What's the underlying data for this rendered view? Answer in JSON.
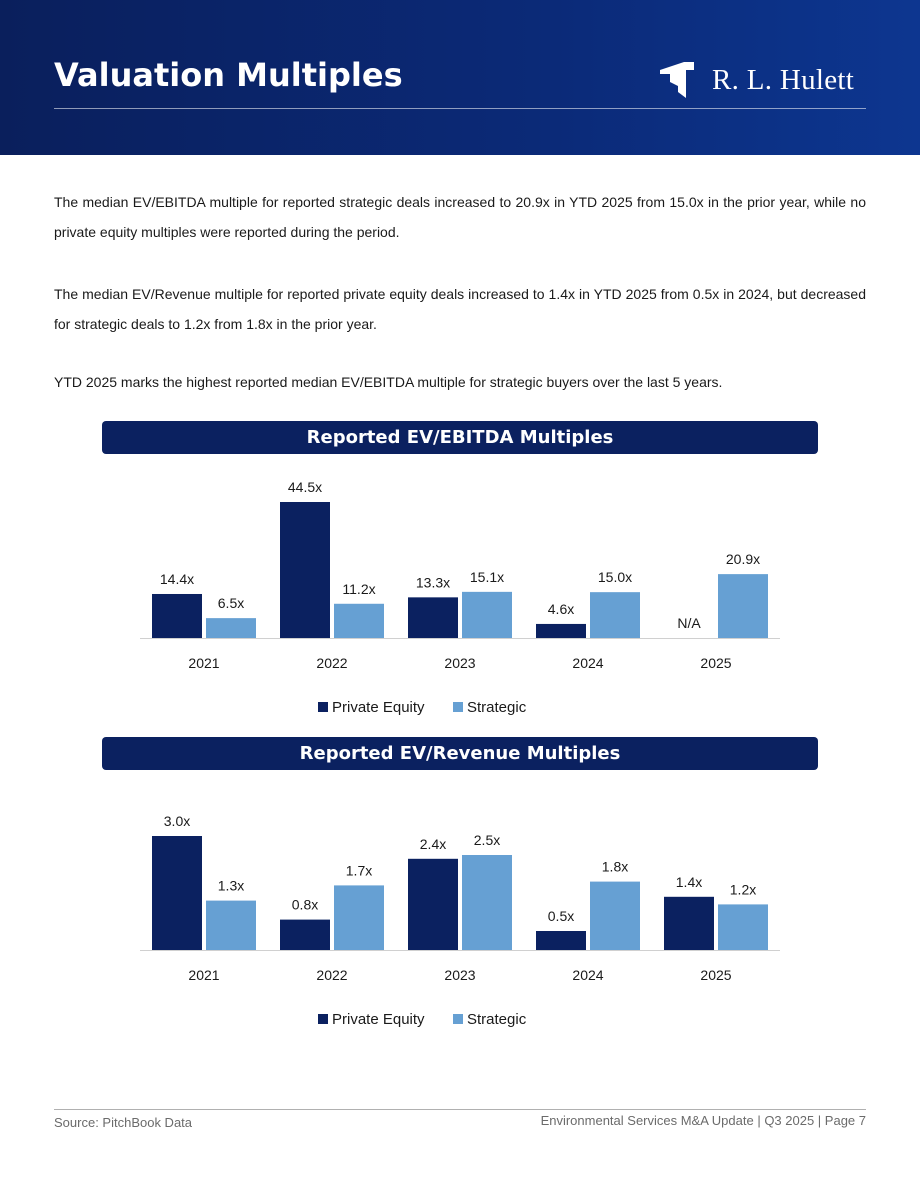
{
  "header": {
    "title": "Valuation Multiples",
    "logo_text": "R. L. Hulett"
  },
  "paragraphs": [
    "The median EV/EBITDA multiple for reported strategic deals increased to 20.9x in YTD 2025 from 15.0x in the prior year, while no private equity multiples were reported during the period.",
    "The median EV/Revenue multiple for reported private equity deals increased to 1.4x in YTD 2025 from 0.5x in 2024, but decreased for strategic deals to 1.2x from 1.8x in the prior year.",
    "YTD 2025 marks the highest reported median EV/EBITDA multiple for strategic buyers over the last 5 years."
  ],
  "colors": {
    "private_equity": "#0b2160",
    "strategic": "#66a0d3",
    "banner": "#0b2160"
  },
  "chart_data": [
    {
      "type": "bar",
      "title": "Reported EV/EBITDA Multiples",
      "categories": [
        "2021",
        "2022",
        "2023",
        "2024",
        "2025"
      ],
      "series": [
        {
          "name": "Private Equity",
          "values": [
            14.4,
            44.5,
            13.3,
            4.6,
            null
          ],
          "labels": [
            "14.4x",
            "44.5x",
            "13.3x",
            "4.6x",
            "N/A"
          ]
        },
        {
          "name": "Strategic",
          "values": [
            6.5,
            11.2,
            15.1,
            15.0,
            20.9
          ],
          "labels": [
            "6.5x",
            "11.2x",
            "15.1x",
            "15.0x",
            "20.9x"
          ]
        }
      ],
      "legend": "bottom"
    },
    {
      "type": "bar",
      "title": "Reported EV/Revenue Multiples",
      "categories": [
        "2021",
        "2022",
        "2023",
        "2024",
        "2025"
      ],
      "series": [
        {
          "name": "Private Equity",
          "values": [
            3.0,
            0.8,
            2.4,
            0.5,
            1.4
          ],
          "labels": [
            "3.0x",
            "0.8x",
            "2.4x",
            "0.5x",
            "1.4x"
          ]
        },
        {
          "name": "Strategic",
          "values": [
            1.3,
            1.7,
            2.5,
            1.8,
            1.2
          ],
          "labels": [
            "1.3x",
            "1.7x",
            "2.5x",
            "1.8x",
            "1.2x"
          ]
        }
      ],
      "legend": "bottom"
    }
  ],
  "footer": {
    "source": "Source: PitchBook Data",
    "page": "Environmental Services M&A Update | Q3 2025 | Page 7"
  }
}
